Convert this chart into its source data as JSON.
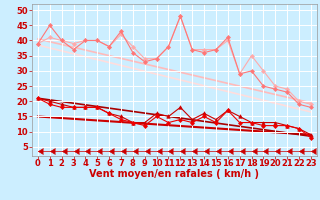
{
  "bg_color": "#cceeff",
  "grid_color": "#ffffff",
  "xlabel": "Vent moyen/en rafales ( km/h )",
  "xlabel_color": "#cc0000",
  "xlabel_fontsize": 7,
  "xtick_color": "#cc0000",
  "ytick_color": "#cc0000",
  "tick_fontsize": 6,
  "ylim": [
    2,
    52
  ],
  "xlim": [
    -0.5,
    23.5
  ],
  "yticks": [
    5,
    10,
    15,
    20,
    25,
    30,
    35,
    40,
    45,
    50
  ],
  "xticks": [
    0,
    1,
    2,
    3,
    4,
    5,
    6,
    7,
    8,
    9,
    10,
    11,
    12,
    13,
    14,
    15,
    16,
    17,
    18,
    19,
    20,
    21,
    22,
    23
  ],
  "lines": [
    {
      "x": [
        0,
        1,
        2,
        3,
        4,
        5,
        6,
        7,
        8,
        9,
        10,
        11,
        12,
        13,
        14,
        15,
        16,
        17,
        18,
        19,
        20,
        21,
        22,
        23
      ],
      "y": [
        39,
        41,
        40,
        39,
        40,
        40,
        38,
        42,
        38,
        34,
        34,
        38,
        48,
        37,
        37,
        37,
        40,
        29,
        35,
        30,
        25,
        24,
        20,
        19
      ],
      "color": "#ffaaaa",
      "lw": 0.8,
      "marker": "D",
      "ms": 2,
      "zorder": 2
    },
    {
      "x": [
        0,
        1,
        2,
        3,
        4,
        5,
        6,
        7,
        8,
        9,
        10,
        11,
        12,
        13,
        14,
        15,
        16,
        17,
        18,
        19,
        20,
        21,
        22,
        23
      ],
      "y": [
        39,
        45,
        40,
        37,
        40,
        40,
        38,
        43,
        36,
        33,
        34,
        38,
        48,
        37,
        36,
        37,
        41,
        29,
        30,
        25,
        24,
        23,
        19,
        18
      ],
      "color": "#ff7777",
      "lw": 0.8,
      "marker": "D",
      "ms": 2,
      "zorder": 2
    },
    {
      "x": [
        0,
        23
      ],
      "y": [
        40.5,
        19.5
      ],
      "color": "#ffbbbb",
      "lw": 1.2,
      "marker": null,
      "ms": 0,
      "zorder": 1
    },
    {
      "x": [
        0,
        23
      ],
      "y": [
        38.5,
        16.5
      ],
      "color": "#ffdddd",
      "lw": 1.2,
      "marker": null,
      "ms": 0,
      "zorder": 1
    },
    {
      "x": [
        0,
        1,
        2,
        3,
        4,
        5,
        6,
        7,
        8,
        9,
        10,
        11,
        12,
        13,
        14,
        15,
        16,
        17,
        18,
        19,
        20,
        21,
        22,
        23
      ],
      "y": [
        21,
        20,
        19,
        18,
        18,
        18,
        16,
        15,
        13,
        13,
        16,
        15,
        18,
        14,
        16,
        14,
        17,
        15,
        13,
        13,
        13,
        12,
        11,
        9
      ],
      "color": "#cc0000",
      "lw": 0.8,
      "marker": "^",
      "ms": 2.5,
      "zorder": 3
    },
    {
      "x": [
        0,
        1,
        2,
        3,
        4,
        5,
        6,
        7,
        8,
        9,
        10,
        11,
        12,
        13,
        14,
        15,
        16,
        17,
        18,
        19,
        20,
        21,
        22,
        23
      ],
      "y": [
        21,
        19,
        18,
        18,
        18,
        18,
        16,
        14,
        13,
        12,
        15,
        13,
        14,
        13,
        15,
        13,
        17,
        13,
        13,
        12,
        12,
        12,
        11,
        8
      ],
      "color": "#ee0000",
      "lw": 0.8,
      "marker": "D",
      "ms": 2,
      "zorder": 3
    },
    {
      "x": [
        0,
        23
      ],
      "y": [
        15,
        9
      ],
      "color": "#cc0000",
      "lw": 1.5,
      "marker": null,
      "ms": 0,
      "zorder": 1
    },
    {
      "x": [
        0,
        23
      ],
      "y": [
        21,
        8.5
      ],
      "color": "#aa0000",
      "lw": 1.2,
      "marker": null,
      "ms": 0,
      "zorder": 1
    },
    {
      "x": [
        0,
        1,
        2,
        3,
        4,
        5,
        6,
        7,
        8,
        9,
        10,
        11,
        12,
        13,
        14,
        15,
        16,
        17,
        18,
        19,
        20,
        21,
        22,
        23
      ],
      "y": [
        3.5,
        3.5,
        3.5,
        3.5,
        3.5,
        3.5,
        3.5,
        3.5,
        3.5,
        3.5,
        3.5,
        3.5,
        3.5,
        3.5,
        3.5,
        3.5,
        3.5,
        3.5,
        3.5,
        3.5,
        3.5,
        3.5,
        3.5,
        3.5
      ],
      "color": "#cc0000",
      "lw": 0.5,
      "marker": 4,
      "ms": 5,
      "zorder": 2
    }
  ]
}
